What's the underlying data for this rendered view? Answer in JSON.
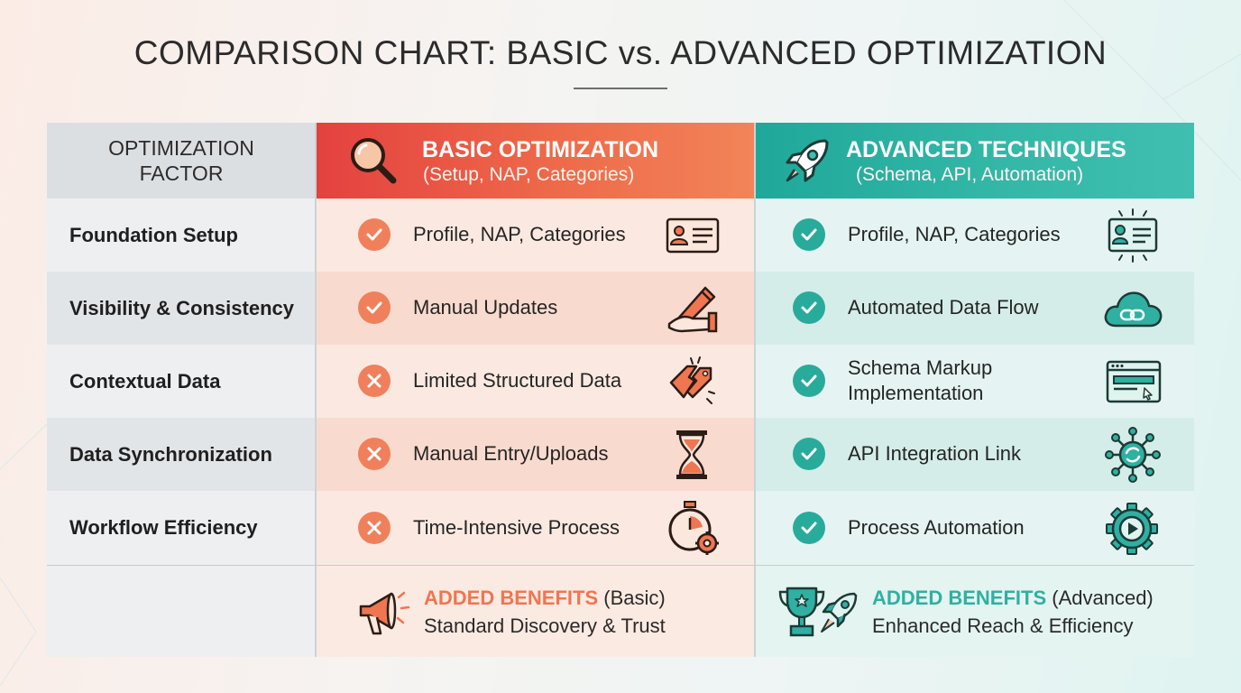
{
  "title": "COMPARISON CHART: BASIC vs. ADVANCED OPTIMIZATION",
  "header": {
    "factor": "OPTIMIZATION FACTOR",
    "basic_title": "BASIC OPTIMIZATION",
    "basic_sub": "(Setup, NAP, Categories)",
    "advanced_title": "ADVANCED TECHNIQUES",
    "advanced_sub": "(Schema, API, Automation)"
  },
  "rows": [
    {
      "factor": "Foundation Setup",
      "basic": "Profile, NAP, Categories",
      "basic_status": "check",
      "basic_icon": "id-card-icon",
      "advanced": "Profile, NAP, Categories",
      "advanced_status": "check",
      "advanced_icon": "id-card-glow-icon"
    },
    {
      "factor": "Visibility & Consistency",
      "basic": "Manual Updates",
      "basic_status": "check",
      "basic_icon": "pen-hand-icon",
      "advanced": "Automated Data Flow",
      "advanced_status": "check",
      "advanced_icon": "cloud-link-icon"
    },
    {
      "factor": "Contextual Data",
      "basic": "Limited Structured Data",
      "basic_status": "cross",
      "basic_icon": "broken-tag-icon",
      "advanced": "Schema Markup Implementation",
      "advanced_status": "check",
      "advanced_icon": "browser-code-icon"
    },
    {
      "factor": "Data Synchronization",
      "basic": "Manual Entry/Uploads",
      "basic_status": "cross",
      "basic_icon": "hourglass-icon",
      "advanced": "API Integration Link",
      "advanced_status": "check",
      "advanced_icon": "network-sync-icon"
    },
    {
      "factor": "Workflow Efficiency",
      "basic": "Time-Intensive Process",
      "basic_status": "cross",
      "basic_icon": "stopwatch-gear-icon",
      "advanced": "Process Automation",
      "advanced_status": "check",
      "advanced_icon": "gear-play-icon"
    }
  ],
  "benefits": {
    "basic_highlight": "ADDED BENEFITS",
    "basic_label": "(Basic)",
    "basic_text": "Standard Discovery & Trust",
    "basic_icon": "megaphone-icon",
    "advanced_highlight": "ADDED BENEFITS",
    "advanced_label": "(Advanced)",
    "advanced_text": "Enhanced Reach & Efficiency",
    "advanced_icon": "trophy-rocket-icon"
  },
  "colors": {
    "basic_accent": "#ef7651",
    "advanced_accent": "#2fb0a2",
    "basic_header_start": "#e4413f",
    "advanced_header": "#2aae9f"
  }
}
